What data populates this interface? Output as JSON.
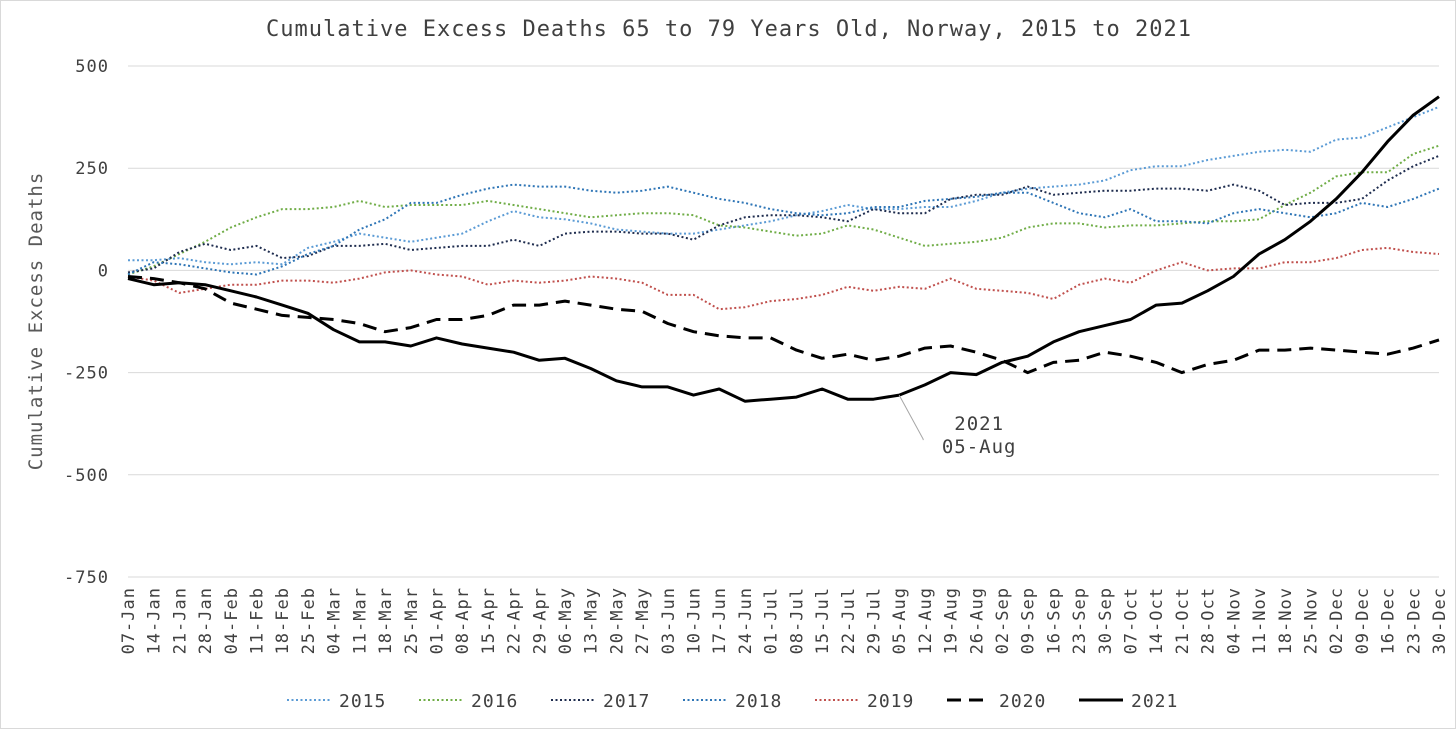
{
  "chart_data": {
    "type": "line",
    "title": "Cumulative Excess Deaths 65 to 79 Years Old, Norway, 2015 to 2021",
    "xlabel": "",
    "ylabel": "Cumulative Excess Deaths",
    "ylim": [
      -750,
      500
    ],
    "yticks": [
      500,
      250,
      0,
      -250,
      -500,
      -750
    ],
    "ytick_labels": [
      "500",
      "250",
      "0",
      "-250",
      "-500",
      "-750"
    ],
    "grid": true,
    "legend_position": "bottom",
    "categories": [
      "07-Jan",
      "14-Jan",
      "21-Jan",
      "28-Jan",
      "04-Feb",
      "11-Feb",
      "18-Feb",
      "25-Feb",
      "04-Mar",
      "11-Mar",
      "18-Mar",
      "25-Mar",
      "01-Apr",
      "08-Apr",
      "15-Apr",
      "22-Apr",
      "29-Apr",
      "06-May",
      "13-May",
      "20-May",
      "27-May",
      "03-Jun",
      "10-Jun",
      "17-Jun",
      "24-Jun",
      "01-Jul",
      "08-Jul",
      "15-Jul",
      "22-Jul",
      "29-Jul",
      "05-Aug",
      "12-Aug",
      "19-Aug",
      "26-Aug",
      "02-Sep",
      "09-Sep",
      "16-Sep",
      "23-Sep",
      "30-Sep",
      "07-Oct",
      "14-Oct",
      "21-Oct",
      "28-Oct",
      "04-Nov",
      "11-Nov",
      "18-Nov",
      "25-Nov",
      "02-Dec",
      "09-Dec",
      "16-Dec",
      "23-Dec",
      "30-Dec"
    ],
    "series": [
      {
        "name": "2015",
        "color": "#5b9bd5",
        "style": "dotted",
        "values": [
          25,
          25,
          30,
          20,
          15,
          20,
          15,
          55,
          70,
          90,
          80,
          70,
          80,
          90,
          120,
          145,
          130,
          125,
          115,
          100,
          95,
          90,
          90,
          100,
          110,
          120,
          135,
          145,
          160,
          150,
          150,
          155,
          155,
          170,
          190,
          200,
          205,
          210,
          220,
          245,
          255,
          255,
          270,
          280,
          290,
          295,
          290,
          320,
          325,
          350,
          375,
          400
        ]
      },
      {
        "name": "2016",
        "color": "#70ad47",
        "style": "dotted",
        "values": [
          -10,
          10,
          40,
          70,
          105,
          130,
          150,
          150,
          155,
          170,
          155,
          160,
          160,
          160,
          170,
          160,
          150,
          140,
          130,
          135,
          140,
          140,
          135,
          110,
          105,
          95,
          85,
          90,
          110,
          100,
          80,
          60,
          65,
          70,
          80,
          105,
          115,
          115,
          105,
          110,
          110,
          115,
          120,
          120,
          125,
          160,
          190,
          230,
          240,
          240,
          285,
          305
        ]
      },
      {
        "name": "2017",
        "color": "#1f2d4f",
        "style": "dotted",
        "values": [
          -5,
          5,
          45,
          65,
          50,
          60,
          30,
          35,
          60,
          60,
          65,
          50,
          55,
          60,
          60,
          75,
          60,
          90,
          95,
          95,
          90,
          90,
          75,
          110,
          130,
          135,
          135,
          130,
          120,
          150,
          140,
          140,
          175,
          185,
          185,
          205,
          185,
          190,
          195,
          195,
          200,
          200,
          195,
          210,
          195,
          160,
          165,
          165,
          175,
          220,
          255,
          280
        ]
      },
      {
        "name": "2018",
        "color": "#2e75b6",
        "style": "dotted",
        "values": [
          -10,
          20,
          15,
          5,
          -5,
          -10,
          10,
          40,
          60,
          100,
          125,
          165,
          165,
          185,
          200,
          210,
          205,
          205,
          195,
          190,
          195,
          205,
          190,
          175,
          165,
          150,
          140,
          135,
          140,
          155,
          155,
          170,
          175,
          180,
          190,
          190,
          165,
          140,
          130,
          150,
          120,
          120,
          115,
          140,
          150,
          140,
          130,
          140,
          165,
          155,
          175,
          200
        ]
      },
      {
        "name": "2019",
        "color": "#c0504d",
        "style": "dotted",
        "values": [
          -15,
          -25,
          -55,
          -45,
          -35,
          -35,
          -25,
          -25,
          -30,
          -20,
          -5,
          0,
          -10,
          -15,
          -35,
          -25,
          -30,
          -25,
          -15,
          -20,
          -30,
          -60,
          -60,
          -95,
          -90,
          -75,
          -70,
          -60,
          -40,
          -50,
          -40,
          -45,
          -20,
          -45,
          -50,
          -55,
          -70,
          -35,
          -20,
          -30,
          0,
          20,
          0,
          5,
          5,
          20,
          20,
          30,
          50,
          55,
          45,
          40
        ]
      },
      {
        "name": "2020",
        "color": "#000000",
        "style": "dashed",
        "values": [
          -15,
          -20,
          -30,
          -45,
          -80,
          -95,
          -110,
          -115,
          -120,
          -130,
          -150,
          -140,
          -120,
          -120,
          -110,
          -85,
          -85,
          -75,
          -85,
          -95,
          -100,
          -130,
          -150,
          -160,
          -165,
          -165,
          -195,
          -215,
          -205,
          -220,
          -210,
          -190,
          -185,
          -200,
          -220,
          -250,
          -225,
          -220,
          -200,
          -210,
          -225,
          -250,
          -230,
          -220,
          -195,
          -195,
          -190,
          -195,
          -200,
          -205,
          -190,
          -170
        ]
      },
      {
        "name": "2021",
        "color": "#000000",
        "style": "solid",
        "values": [
          -20,
          -35,
          -30,
          -35,
          -50,
          -65,
          -85,
          -105,
          -145,
          -175,
          -175,
          -185,
          -165,
          -180,
          -190,
          -200,
          -220,
          -215,
          -240,
          -270,
          -285,
          -285,
          -305,
          -290,
          -320,
          -315,
          -310,
          -290,
          -315,
          -315,
          -305,
          -280,
          -250,
          -255,
          -225,
          -210,
          -175,
          -150,
          -135,
          -120,
          -85,
          -80,
          -50,
          -15,
          40,
          75,
          120,
          175,
          240,
          315,
          380,
          425
        ]
      }
    ],
    "annotation": {
      "series": "2021",
      "category": "05-Aug",
      "line1": "2021",
      "line2": "05-Aug"
    }
  }
}
